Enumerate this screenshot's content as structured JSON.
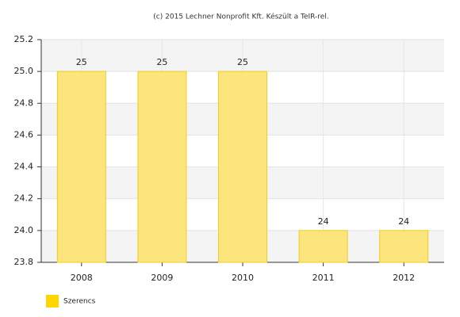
{
  "chart_data": {
    "type": "bar",
    "title": "(c) 2015 Lechner Nonprofit Kft. Készült a TeIR-rel.",
    "categories": [
      "2008",
      "2009",
      "2010",
      "2011",
      "2012"
    ],
    "series": [
      {
        "name": "Szerencs",
        "color": "#fde57e",
        "values": [
          25,
          25,
          25,
          24,
          24
        ]
      }
    ],
    "ylim": [
      23.8,
      25.2
    ],
    "yticks": [
      23.8,
      {
        "value": 24,
        "label": "24.0"
      },
      24.2,
      24.4,
      24.6,
      24.8,
      {
        "value": 25,
        "label": "25.0"
      },
      25.2
    ],
    "grid": true
  }
}
